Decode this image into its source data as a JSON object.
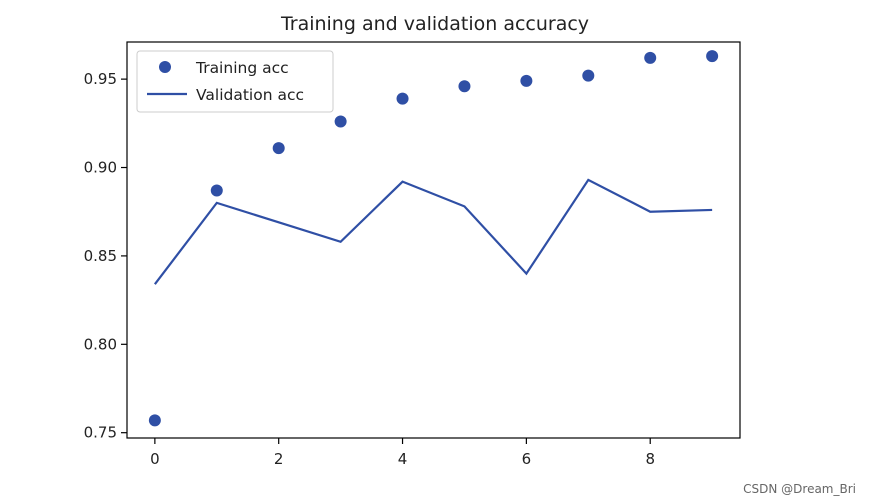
{
  "chart_data": {
    "type": "scatter+line",
    "title": "Training and validation accuracy",
    "xlabel": "",
    "ylabel": "",
    "xlim": [
      -0.45,
      9.45
    ],
    "ylim": [
      0.747,
      0.971
    ],
    "x_ticks": [
      0,
      2,
      4,
      6,
      8
    ],
    "y_ticks": [
      0.75,
      0.8,
      0.85,
      0.9,
      0.95
    ],
    "x_tick_labels": [
      "0",
      "2",
      "4",
      "6",
      "8"
    ],
    "y_tick_labels": [
      "0.75",
      "0.80",
      "0.85",
      "0.90",
      "0.95"
    ],
    "grid": false,
    "legend_position": "top-left",
    "series": [
      {
        "name": "Training acc",
        "style": "points",
        "color": "#2f4fa5",
        "x": [
          0,
          1,
          2,
          3,
          4,
          5,
          6,
          7,
          8,
          9
        ],
        "values": [
          0.757,
          0.887,
          0.911,
          0.926,
          0.939,
          0.946,
          0.949,
          0.952,
          0.962,
          0.963
        ]
      },
      {
        "name": "Validation acc",
        "style": "line",
        "color": "#2f4fa5",
        "x": [
          0,
          1,
          2,
          3,
          4,
          5,
          6,
          7,
          8,
          9
        ],
        "values": [
          0.834,
          0.88,
          0.869,
          0.858,
          0.892,
          0.878,
          0.84,
          0.893,
          0.875,
          0.876
        ]
      }
    ]
  },
  "watermark": "CSDN @Dream_Bri"
}
